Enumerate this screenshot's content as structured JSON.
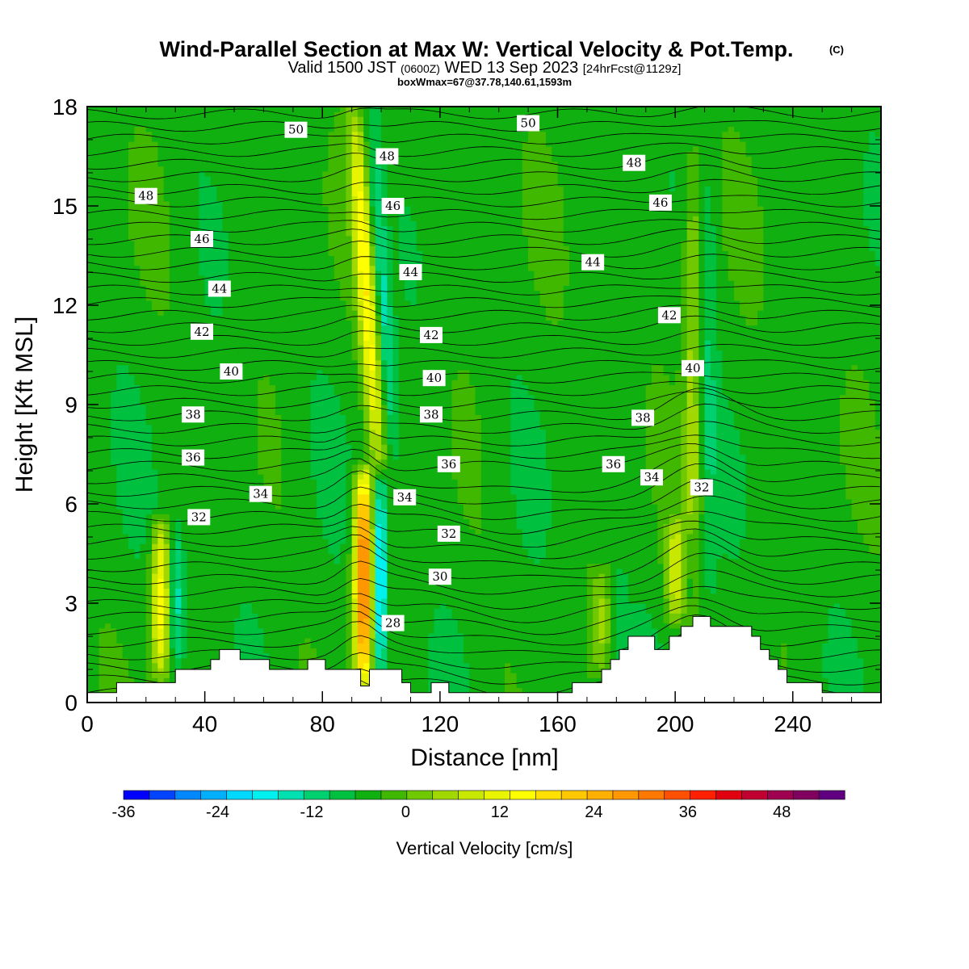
{
  "title": {
    "main": "Wind-Parallel Section at Max W: Vertical Velocity & Pot.Temp.",
    "copyright": "(C)",
    "valid_prefix": "Valid 1500 JST",
    "valid_zulu": "(0600Z)",
    "valid_date": "WED 13 Sep 2023",
    "forecast": "[24hrFcst@1129z]",
    "boxmax": "boxWmax=67@37.78,140.61,1593m"
  },
  "chart_data": {
    "type": "heatmap",
    "xlabel": "Distance [nm]",
    "ylabel": "Height [Kft MSL]",
    "xlim": [
      0,
      270
    ],
    "ylim": [
      0,
      18
    ],
    "x_ticks": [
      0,
      40,
      80,
      120,
      160,
      200,
      240
    ],
    "y_ticks": [
      0,
      3,
      6,
      9,
      12,
      15,
      18
    ],
    "fill_variable": "Vertical Velocity [cm/s]",
    "contour_variable": "Potential Temperature",
    "colorbar": {
      "label": "Vertical Velocity [cm/s]",
      "min": -36,
      "max": 56,
      "step": 4,
      "ticks": [
        -36,
        -24,
        -12,
        0,
        12,
        24,
        36,
        48
      ],
      "colors": [
        "#0000ff",
        "#0044ff",
        "#0088ff",
        "#00b0ff",
        "#00d8ff",
        "#00f0f0",
        "#00e0b0",
        "#00d070",
        "#00c040",
        "#10b010",
        "#40b800",
        "#70c800",
        "#a0d800",
        "#c8e800",
        "#e8f400",
        "#ffff00",
        "#ffe000",
        "#ffc800",
        "#ffb000",
        "#ff9800",
        "#ff7800",
        "#ff5000",
        "#ff2000",
        "#e00010",
        "#c00030",
        "#a00050",
        "#800060",
        "#600080"
      ]
    },
    "updrafts": [
      {
        "x": 25,
        "z_base": 0.8,
        "z_top": 5.5,
        "peak": 24
      },
      {
        "x": 94,
        "z_base": 0.5,
        "z_top": 7.0,
        "peak": 46
      },
      {
        "x": 99,
        "z_base": 7.0,
        "z_top": 18.0,
        "peak": 24
      },
      {
        "x": 200,
        "z_base": 2.5,
        "z_top": 5.5,
        "peak": 16
      },
      {
        "x": 206,
        "z_base": 2.0,
        "z_top": 17.0,
        "peak": 12
      },
      {
        "x": 175,
        "z_base": 1.0,
        "z_top": 4.0,
        "peak": 10
      }
    ],
    "contour_labels": [
      "28",
      "30",
      "32",
      "34",
      "36",
      "38",
      "40",
      "42",
      "44",
      "46",
      "48",
      "50"
    ],
    "contour_label_points": [
      {
        "text": "50",
        "x": 71,
        "z": 17.3
      },
      {
        "text": "50",
        "x": 150,
        "z": 17.5
      },
      {
        "text": "48",
        "x": 20,
        "z": 15.3
      },
      {
        "text": "48",
        "x": 102,
        "z": 16.5
      },
      {
        "text": "48",
        "x": 186,
        "z": 16.3
      },
      {
        "text": "46",
        "x": 39,
        "z": 14.0
      },
      {
        "text": "46",
        "x": 104,
        "z": 15.0
      },
      {
        "text": "46",
        "x": 195,
        "z": 15.1
      },
      {
        "text": "44",
        "x": 45,
        "z": 12.5
      },
      {
        "text": "44",
        "x": 110,
        "z": 13.0
      },
      {
        "text": "44",
        "x": 172,
        "z": 13.3
      },
      {
        "text": "42",
        "x": 39,
        "z": 11.2
      },
      {
        "text": "42",
        "x": 117,
        "z": 11.1
      },
      {
        "text": "42",
        "x": 198,
        "z": 11.7
      },
      {
        "text": "40",
        "x": 49,
        "z": 10.0
      },
      {
        "text": "40",
        "x": 118,
        "z": 9.8
      },
      {
        "text": "40",
        "x": 206,
        "z": 10.1
      },
      {
        "text": "38",
        "x": 36,
        "z": 8.7
      },
      {
        "text": "38",
        "x": 117,
        "z": 8.7
      },
      {
        "text": "38",
        "x": 189,
        "z": 8.6
      },
      {
        "text": "36",
        "x": 36,
        "z": 7.4
      },
      {
        "text": "36",
        "x": 123,
        "z": 7.2
      },
      {
        "text": "36",
        "x": 179,
        "z": 7.2
      },
      {
        "text": "34",
        "x": 59,
        "z": 6.3
      },
      {
        "text": "34",
        "x": 108,
        "z": 6.2
      },
      {
        "text": "34",
        "x": 192,
        "z": 6.8
      },
      {
        "text": "32",
        "x": 38,
        "z": 5.6
      },
      {
        "text": "32",
        "x": 123,
        "z": 5.1
      },
      {
        "text": "32",
        "x": 209,
        "z": 6.5
      },
      {
        "text": "30",
        "x": 120,
        "z": 3.8
      },
      {
        "text": "28",
        "x": 104,
        "z": 2.4
      }
    ],
    "terrain": [
      [
        0,
        0.3
      ],
      [
        10,
        0.3
      ],
      [
        10,
        0.6
      ],
      [
        30,
        0.6
      ],
      [
        30,
        1.0
      ],
      [
        38,
        1.0
      ],
      [
        38,
        1.0
      ],
      [
        42,
        1.0
      ],
      [
        42,
        1.3
      ],
      [
        45,
        1.3
      ],
      [
        45,
        1.6
      ],
      [
        52,
        1.6
      ],
      [
        52,
        1.3
      ],
      [
        62,
        1.3
      ],
      [
        62,
        1.0
      ],
      [
        75,
        1.0
      ],
      [
        75,
        1.3
      ],
      [
        81,
        1.3
      ],
      [
        81,
        1.0
      ],
      [
        93,
        1.0
      ],
      [
        93,
        0.5
      ],
      [
        96,
        0.5
      ],
      [
        96,
        1.0
      ],
      [
        107,
        1.0
      ],
      [
        107,
        0.6
      ],
      [
        110,
        0.6
      ],
      [
        110,
        0.3
      ],
      [
        117,
        0.3
      ],
      [
        117,
        0.6
      ],
      [
        123,
        0.6
      ],
      [
        123,
        0.3
      ],
      [
        165,
        0.3
      ],
      [
        165,
        0.6
      ],
      [
        175,
        0.6
      ],
      [
        175,
        1.0
      ],
      [
        178,
        1.0
      ],
      [
        178,
        1.3
      ],
      [
        181,
        1.3
      ],
      [
        181,
        1.6
      ],
      [
        184,
        1.6
      ],
      [
        184,
        2.0
      ],
      [
        193,
        2.0
      ],
      [
        193,
        1.6
      ],
      [
        198,
        1.6
      ],
      [
        198,
        2.0
      ],
      [
        202,
        2.0
      ],
      [
        202,
        2.3
      ],
      [
        206,
        2.3
      ],
      [
        206,
        2.6
      ],
      [
        212,
        2.6
      ],
      [
        212,
        2.3
      ],
      [
        226,
        2.3
      ],
      [
        226,
        2.0
      ],
      [
        229,
        2.0
      ],
      [
        229,
        1.6
      ],
      [
        232,
        1.6
      ],
      [
        232,
        1.3
      ],
      [
        235,
        1.3
      ],
      [
        235,
        1.0
      ],
      [
        238,
        1.0
      ],
      [
        238,
        0.6
      ],
      [
        250,
        0.6
      ],
      [
        250,
        0.3
      ],
      [
        270,
        0.3
      ],
      [
        270,
        0
      ]
    ]
  }
}
